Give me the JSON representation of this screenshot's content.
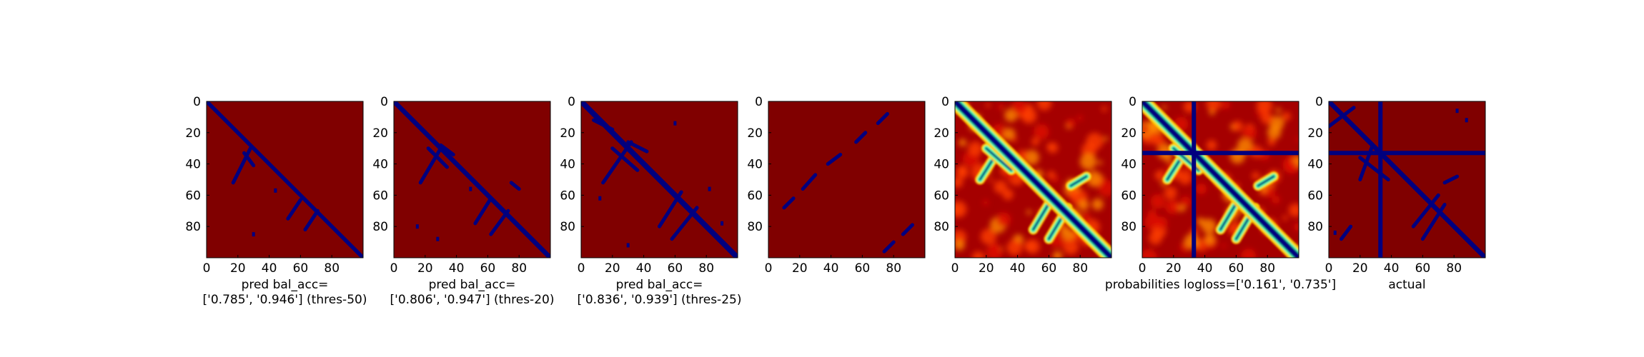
{
  "chart_data": [
    {
      "type": "heatmap",
      "content": "thresholded predicted contact map",
      "caption_lines": [
        "pred bal_acc=",
        "['0.785', '0.946'] (thres-50)"
      ],
      "xlim": [
        0,
        100
      ],
      "ylim": [
        0,
        100
      ],
      "x_ticks": [
        0,
        20,
        40,
        60,
        80
      ],
      "y_ticks": [
        0,
        20,
        40,
        60,
        80
      ],
      "background_color": "#800000",
      "mark_color": "#00007f",
      "diagonal_width": 2.5,
      "bands": [
        {
          "from": [
            17,
            52
          ],
          "to": [
            28,
            30
          ]
        },
        {
          "from": [
            24,
            33
          ],
          "to": [
            30,
            41
          ]
        },
        {
          "from": [
            52,
            75
          ],
          "to": [
            60,
            63
          ]
        },
        {
          "from": [
            63,
            82
          ],
          "to": [
            71,
            70
          ]
        }
      ],
      "specks": [
        [
          30,
          85
        ],
        [
          44,
          57
        ]
      ]
    },
    {
      "type": "heatmap",
      "content": "thresholded predicted contact map",
      "caption_lines": [
        "pred bal_acc=",
        "['0.806', '0.947'] (thres-20)"
      ],
      "xlim": [
        0,
        100
      ],
      "ylim": [
        0,
        100
      ],
      "x_ticks": [
        0,
        20,
        40,
        60,
        80
      ],
      "y_ticks": [
        0,
        20,
        40,
        60,
        80
      ],
      "background_color": "#800000",
      "mark_color": "#00007f",
      "diagonal_width": 3,
      "bands": [
        {
          "from": [
            17,
            52
          ],
          "to": [
            30,
            30
          ]
        },
        {
          "from": [
            22,
            30
          ],
          "to": [
            34,
            42
          ]
        },
        {
          "from": [
            30,
            28
          ],
          "to": [
            38,
            34
          ]
        },
        {
          "from": [
            52,
            78
          ],
          "to": [
            62,
            62
          ]
        },
        {
          "from": [
            62,
            85
          ],
          "to": [
            73,
            70
          ]
        },
        {
          "from": [
            75,
            52
          ],
          "to": [
            80,
            56
          ]
        }
      ],
      "specks": [
        [
          15,
          80
        ],
        [
          28,
          88
        ],
        [
          49,
          56
        ]
      ]
    },
    {
      "type": "heatmap",
      "content": "thresholded predicted contact map",
      "caption_lines": [
        "pred bal_acc=",
        "['0.836', '0.939'] (thres-25)"
      ],
      "xlim": [
        0,
        100
      ],
      "ylim": [
        0,
        100
      ],
      "x_ticks": [
        0,
        20,
        40,
        60,
        80
      ],
      "y_ticks": [
        0,
        20,
        40,
        60,
        80
      ],
      "background_color": "#800000",
      "mark_color": "#00007f",
      "diagonal_width": 3.5,
      "bands": [
        {
          "from": [
            14,
            52
          ],
          "to": [
            32,
            26
          ]
        },
        {
          "from": [
            20,
            30
          ],
          "to": [
            36,
            44
          ]
        },
        {
          "from": [
            30,
            26
          ],
          "to": [
            42,
            32
          ]
        },
        {
          "from": [
            50,
            80
          ],
          "to": [
            64,
            58
          ]
        },
        {
          "from": [
            58,
            88
          ],
          "to": [
            74,
            68
          ]
        },
        {
          "from": [
            8,
            12
          ],
          "to": [
            20,
            18
          ]
        }
      ],
      "specks": [
        [
          12,
          62
        ],
        [
          60,
          14
        ],
        [
          82,
          56
        ],
        [
          30,
          92
        ],
        [
          90,
          78
        ]
      ]
    },
    {
      "type": "heatmap",
      "content": "thresholded predicted contact map (sparse)",
      "caption_lines": [],
      "xlim": [
        0,
        100
      ],
      "ylim": [
        0,
        100
      ],
      "x_ticks": [
        0,
        20,
        40,
        60,
        80
      ],
      "y_ticks": [
        0,
        20,
        40,
        60,
        80
      ],
      "background_color": "#800000",
      "mark_color": "#00007f",
      "diagonal_width": 0,
      "bands": [
        {
          "from": [
            10,
            68
          ],
          "to": [
            16,
            62
          ]
        },
        {
          "from": [
            22,
            56
          ],
          "to": [
            30,
            47
          ]
        },
        {
          "from": [
            38,
            40
          ],
          "to": [
            46,
            34
          ]
        },
        {
          "from": [
            56,
            26
          ],
          "to": [
            62,
            20
          ]
        },
        {
          "from": [
            70,
            14
          ],
          "to": [
            76,
            8
          ]
        },
        {
          "from": [
            74,
            96
          ],
          "to": [
            80,
            90
          ]
        },
        {
          "from": [
            86,
            85
          ],
          "to": [
            92,
            79
          ]
        }
      ],
      "specks": []
    },
    {
      "type": "heatmap",
      "content": "predicted contact probabilities",
      "caption_lines": [],
      "xlim": [
        0,
        100
      ],
      "ylim": [
        0,
        100
      ],
      "x_ticks": [
        0,
        20,
        40,
        60,
        80
      ],
      "y_ticks": [
        0,
        20,
        40,
        60,
        80
      ],
      "colormap": "jet",
      "mark_color": "#00007f",
      "diagonal_width": 4,
      "bands": [
        {
          "from": [
            16,
            50
          ],
          "to": [
            30,
            28
          ]
        },
        {
          "from": [
            20,
            30
          ],
          "to": [
            36,
            44
          ]
        },
        {
          "from": [
            50,
            82
          ],
          "to": [
            62,
            62
          ]
        },
        {
          "from": [
            60,
            88
          ],
          "to": [
            72,
            68
          ]
        },
        {
          "from": [
            74,
            54
          ],
          "to": [
            84,
            48
          ]
        }
      ],
      "specks": []
    },
    {
      "type": "heatmap",
      "content": "predicted contact probabilities with masked row/column",
      "caption_lines": [
        "probabilities logloss=['0.161', '0.735']"
      ],
      "xlim": [
        0,
        100
      ],
      "ylim": [
        0,
        100
      ],
      "x_ticks": [
        0,
        20,
        40,
        60,
        80
      ],
      "y_ticks": [
        0,
        20,
        40,
        60,
        80
      ],
      "colormap": "jet",
      "mark_color": "#00007f",
      "diagonal_width": 4,
      "cross_line": 33,
      "bands": [
        {
          "from": [
            16,
            50
          ],
          "to": [
            30,
            28
          ]
        },
        {
          "from": [
            20,
            30
          ],
          "to": [
            36,
            44
          ]
        },
        {
          "from": [
            50,
            82
          ],
          "to": [
            62,
            62
          ]
        },
        {
          "from": [
            60,
            88
          ],
          "to": [
            72,
            68
          ]
        },
        {
          "from": [
            74,
            54
          ],
          "to": [
            84,
            48
          ]
        }
      ],
      "specks": []
    },
    {
      "type": "heatmap",
      "content": "actual contact map",
      "caption_lines": [
        "actual"
      ],
      "xlim": [
        0,
        100
      ],
      "ylim": [
        0,
        100
      ],
      "x_ticks": [
        0,
        20,
        40,
        60,
        80
      ],
      "y_ticks": [
        0,
        20,
        40,
        60,
        80
      ],
      "background_color": "#800000",
      "mark_color": "#00007f",
      "diagonal_width": 3,
      "cross_line": 33,
      "bands": [
        {
          "from": [
            0,
            16
          ],
          "to": [
            16,
            4
          ]
        },
        {
          "from": [
            20,
            36
          ],
          "to": [
            38,
            50
          ]
        },
        {
          "from": [
            54,
            80
          ],
          "to": [
            70,
            60
          ]
        },
        {
          "from": [
            60,
            88
          ],
          "to": [
            74,
            66
          ]
        },
        {
          "from": [
            20,
            50
          ],
          "to": [
            28,
            28
          ]
        },
        {
          "from": [
            8,
            88
          ],
          "to": [
            14,
            80
          ]
        },
        {
          "from": [
            74,
            52
          ],
          "to": [
            82,
            48
          ]
        }
      ],
      "specks": [
        [
          82,
          6
        ],
        [
          88,
          12
        ],
        [
          4,
          84
        ]
      ]
    }
  ]
}
